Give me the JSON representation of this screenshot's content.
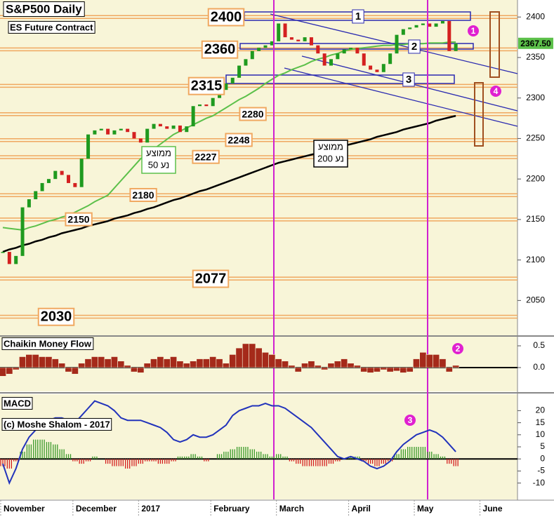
{
  "chart_data": [
    {
      "type": "candlestick",
      "title": "S&P500 Daily",
      "subtitle": "ES Future Contract",
      "values": [
        2110,
        2095,
        2105,
        2165,
        2175,
        2185,
        2195,
        2200,
        2210,
        2205,
        2195,
        2190,
        2225,
        2255,
        2260,
        2262,
        2255,
        2260,
        2262,
        2258,
        2250,
        2245,
        2262,
        2268,
        2265,
        2262,
        2266,
        2258,
        2265,
        2290,
        2292,
        2290,
        2300,
        2310,
        2318,
        2325,
        2340,
        2348,
        2358,
        2362,
        2365,
        2370,
        2392,
        2375,
        2372,
        2370,
        2375,
        2365,
        2355,
        2340,
        2348,
        2355,
        2360,
        2362,
        2355,
        2340,
        2335,
        2332,
        2342,
        2355,
        2378,
        2385,
        2387,
        2390,
        2392,
        2388,
        2392,
        2395,
        2358,
        2367.5,
        null,
        null,
        null,
        null,
        null,
        null,
        null,
        null
      ],
      "last_label": "2367.50",
      "color_up": "#1f9a1f",
      "color_down": "#d42020",
      "series": [
        {
          "name_lines": [
            "ממוצע",
            "נע 50"
          ],
          "color": "#5cc04a",
          "values": [
            2140,
            2139,
            2138,
            2137,
            2140,
            2142,
            2145,
            2148,
            2150,
            2153,
            2155,
            2159,
            2163,
            2167,
            2172,
            2176,
            2180,
            2189,
            2198,
            2207,
            2216,
            2225,
            2231,
            2237,
            2243,
            2249,
            2255,
            2259,
            2263,
            2267,
            2271,
            2275,
            2278,
            2283,
            2288,
            2293,
            2298,
            2302,
            2307,
            2312,
            2318,
            2323,
            2328,
            2331,
            2335,
            2338,
            2341,
            2345,
            2348,
            2350,
            2353,
            2355,
            2358,
            2360,
            2361,
            2362,
            2363,
            2364,
            2365,
            2365,
            2366,
            2366,
            2367,
            2367,
            2367,
            2368,
            2368,
            2368,
            2369,
            2369,
            null,
            null,
            null,
            null,
            null,
            null,
            null,
            null
          ]
        },
        {
          "name_lines": [
            "ממוצע",
            "נע 200"
          ],
          "color": "#000000",
          "values": [
            2110,
            2113,
            2115,
            2118,
            2120,
            2123,
            2125,
            2128,
            2130,
            2133,
            2135,
            2137,
            2139,
            2142,
            2144,
            2146,
            2148,
            2151,
            2153,
            2155,
            2158,
            2160,
            2163,
            2165,
            2168,
            2171,
            2174,
            2176,
            2179,
            2182,
            2185,
            2187,
            2190,
            2193,
            2196,
            2199,
            2202,
            2205,
            2208,
            2211,
            2214,
            2217,
            2220,
            2222,
            2224,
            2226,
            2228,
            2230,
            2232,
            2234,
            2237,
            2239,
            2241,
            2243,
            2245,
            2247,
            2249,
            2252,
            2254,
            2256,
            2258,
            2261,
            2263,
            2265,
            2267,
            2269,
            2272,
            2274,
            2276,
            2278,
            null,
            null,
            null,
            null,
            null,
            null,
            null,
            null
          ]
        }
      ],
      "levels": [
        2400,
        2360,
        2315,
        2280,
        2248,
        2227,
        2180,
        2150,
        2077,
        2030
      ],
      "level_color": "#f0a860",
      "zones": [
        "1",
        "2",
        "3"
      ],
      "notes": [
        "1",
        "4"
      ],
      "ylim": [
        2007,
        2421
      ],
      "yticks": [
        2050,
        2100,
        2150,
        2200,
        2250,
        2300,
        2350,
        2400
      ]
    },
    {
      "type": "bar",
      "title": "Chaikin Money Flow",
      "color": "#a52a1a",
      "values": [
        -0.2,
        -0.15,
        -0.05,
        0.25,
        0.3,
        0.3,
        0.25,
        0.25,
        0.2,
        0.1,
        -0.1,
        -0.15,
        0.1,
        0.2,
        0.25,
        0.25,
        0.2,
        0.25,
        0.15,
        0.05,
        -0.1,
        -0.12,
        0.1,
        0.2,
        0.25,
        0.2,
        0.25,
        0.15,
        0.1,
        0.15,
        0.2,
        0.2,
        0.25,
        0.2,
        0.1,
        0.3,
        0.45,
        0.55,
        0.55,
        0.45,
        0.35,
        0.3,
        0.2,
        0.15,
        0.05,
        -0.1,
        0.1,
        0.15,
        0.05,
        -0.05,
        0.1,
        0.15,
        0.2,
        0.1,
        0.05,
        -0.1,
        -0.12,
        -0.1,
        -0.05,
        -0.1,
        -0.08,
        -0.12,
        -0.1,
        0.2,
        0.35,
        0.3,
        0.3,
        0.2,
        -0.1,
        0.05,
        null,
        null,
        null,
        null,
        null,
        null,
        null,
        null
      ],
      "notes": [
        "2"
      ],
      "ylim": [
        -0.55,
        0.71
      ],
      "yticks": [
        {
          "value": 0,
          "label": "0.0"
        },
        0.5
      ]
    },
    {
      "type": "macd",
      "title": "MACD",
      "subtitle": "(c) Moshe Shalom - 2017",
      "categories": [
        "November",
        null,
        null,
        null,
        null,
        null,
        null,
        null,
        null,
        null,
        null,
        "December",
        null,
        null,
        null,
        null,
        null,
        null,
        null,
        null,
        null,
        "2017",
        null,
        null,
        null,
        null,
        null,
        null,
        null,
        null,
        null,
        null,
        "February",
        null,
        null,
        null,
        null,
        null,
        null,
        null,
        null,
        null,
        "March",
        null,
        null,
        null,
        null,
        null,
        null,
        null,
        null,
        null,
        null,
        "April",
        null,
        null,
        null,
        null,
        null,
        null,
        null,
        null,
        null,
        "May",
        null,
        null,
        null,
        null,
        null,
        null,
        null,
        null,
        null,
        "June",
        null,
        null,
        null,
        null
      ],
      "macd": {
        "color": "#2233bb",
        "values": [
          -2,
          -10,
          -4,
          4,
          9,
          12,
          15,
          16,
          17,
          17,
          16,
          15,
          18,
          21,
          24,
          23,
          22,
          20,
          17,
          16,
          16,
          16,
          15,
          14,
          13,
          11,
          8,
          7,
          8,
          10,
          9,
          9,
          10,
          12,
          14,
          18,
          20,
          21,
          22,
          22,
          23,
          22,
          22,
          21,
          19,
          17,
          15,
          13,
          10,
          7,
          4,
          1,
          0,
          1,
          0,
          -1,
          -3,
          -4,
          -3,
          -1,
          3,
          6,
          8,
          10,
          11,
          12,
          11,
          9,
          6,
          3,
          null,
          null,
          null,
          null,
          null,
          null,
          null,
          null
        ]
      },
      "histogram": {
        "color_up": "#3a9a2a",
        "color_down": "#d42020",
        "values": [
          -3,
          -4,
          -1,
          3,
          6,
          8,
          8,
          7,
          6,
          4,
          2,
          -1,
          -2,
          -1,
          1,
          0,
          -2,
          -3,
          -3,
          -4,
          -3,
          -2,
          -1,
          -1,
          -2,
          -2,
          -1,
          1,
          1,
          2,
          1,
          -1,
          0,
          2,
          3,
          4,
          5,
          5,
          4,
          3,
          2,
          1,
          2,
          1,
          -1,
          -2,
          -3,
          -3,
          -3,
          -3,
          -2,
          -1,
          0,
          1,
          1,
          -1,
          -2,
          -3,
          -2,
          -1,
          2,
          4,
          5,
          5,
          5,
          3,
          2,
          1,
          -2,
          -3,
          null,
          null,
          null,
          null,
          null,
          null,
          null,
          null
        ]
      },
      "notes": [
        "3"
      ],
      "ylim": [
        -16.8,
        26.8
      ],
      "yticks": [
        -10,
        -5,
        0,
        5,
        10,
        15,
        20
      ]
    }
  ]
}
